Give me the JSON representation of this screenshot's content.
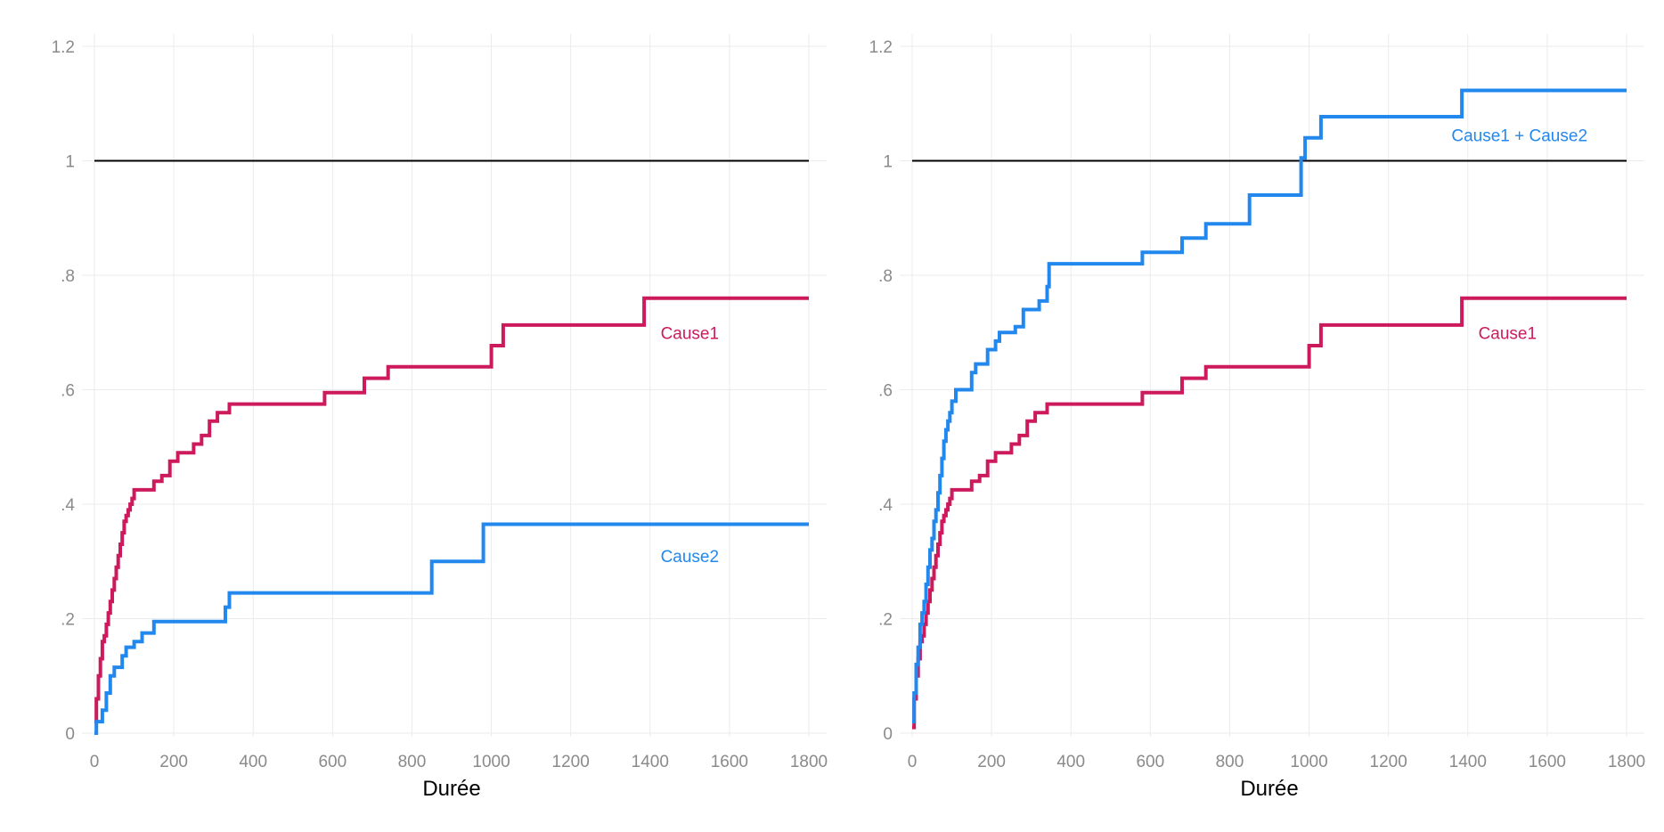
{
  "colors": {
    "cause1": "#cc1a5c",
    "cause2": "#2288ee",
    "ref": "#000000"
  },
  "chart_data": [
    {
      "type": "line",
      "step": true,
      "xlabel": "Durée",
      "ylabel": "",
      "xlim": [
        0,
        1800
      ],
      "ylim": [
        0,
        1.2
      ],
      "x_ticks": [
        0,
        200,
        400,
        600,
        800,
        1000,
        1200,
        1400,
        1600,
        1800
      ],
      "x_tick_labels": [
        "0",
        "200",
        "400",
        "600",
        "800",
        "1000",
        "1200",
        "1400",
        "1600",
        "1800"
      ],
      "y_ticks": [
        0,
        0.2,
        0.4,
        0.6,
        0.8,
        1,
        1.2
      ],
      "y_tick_labels": [
        "0",
        ".2",
        ".4",
        ".6",
        ".8",
        "1",
        "1.2"
      ],
      "reference_line": 1,
      "series": [
        {
          "key": "cause1",
          "label": "Cause1",
          "label_at": [
            1500,
            0.7
          ],
          "x": [
            0,
            5,
            10,
            15,
            20,
            25,
            30,
            35,
            40,
            45,
            50,
            55,
            60,
            65,
            70,
            75,
            80,
            85,
            90,
            95,
            100,
            110,
            150,
            170,
            190,
            210,
            250,
            270,
            290,
            310,
            340,
            400,
            580,
            680,
            740,
            800,
            1000,
            1030,
            1100,
            1385,
            1500,
            1800
          ],
          "y": [
            0.02,
            0.06,
            0.1,
            0.13,
            0.16,
            0.17,
            0.19,
            0.21,
            0.23,
            0.25,
            0.27,
            0.29,
            0.31,
            0.33,
            0.35,
            0.37,
            0.38,
            0.39,
            0.4,
            0.41,
            0.425,
            0.425,
            0.44,
            0.45,
            0.475,
            0.49,
            0.505,
            0.52,
            0.545,
            0.56,
            0.575,
            0.575,
            0.595,
            0.62,
            0.64,
            0.64,
            0.677,
            0.713,
            0.713,
            0.76,
            0.76,
            0.76
          ]
        },
        {
          "key": "cause2",
          "label": "Cause2",
          "label_at": [
            1500,
            0.31
          ],
          "x": [
            0,
            5,
            10,
            20,
            30,
            40,
            50,
            70,
            80,
            100,
            120,
            150,
            200,
            330,
            340,
            400,
            850,
            860,
            980,
            1000,
            1800
          ],
          "y": [
            0.0,
            0.02,
            0.02,
            0.04,
            0.07,
            0.1,
            0.115,
            0.135,
            0.15,
            0.16,
            0.175,
            0.195,
            0.195,
            0.22,
            0.245,
            0.245,
            0.3,
            0.3,
            0.365,
            0.365,
            0.365
          ]
        }
      ]
    },
    {
      "type": "line",
      "step": true,
      "xlabel": "Durée",
      "ylabel": "",
      "xlim": [
        0,
        1800
      ],
      "ylim": [
        0,
        1.2
      ],
      "x_ticks": [
        0,
        200,
        400,
        600,
        800,
        1000,
        1200,
        1400,
        1600,
        1800
      ],
      "x_tick_labels": [
        "0",
        "200",
        "400",
        "600",
        "800",
        "1000",
        "1200",
        "1400",
        "1600",
        "1800"
      ],
      "y_ticks": [
        0,
        0.2,
        0.4,
        0.6,
        0.8,
        1,
        1.2
      ],
      "y_tick_labels": [
        "0",
        ".2",
        ".4",
        ".6",
        ".8",
        "1",
        "1.2"
      ],
      "reference_line": 1,
      "series": [
        {
          "key": "cause1",
          "label": "Cause1",
          "label_at": [
            1500,
            0.7
          ],
          "x": [
            0,
            5,
            10,
            15,
            20,
            25,
            30,
            35,
            40,
            45,
            50,
            55,
            60,
            65,
            70,
            75,
            80,
            85,
            90,
            95,
            100,
            110,
            150,
            170,
            190,
            210,
            250,
            270,
            290,
            310,
            340,
            400,
            580,
            680,
            740,
            800,
            1000,
            1030,
            1100,
            1385,
            1500,
            1800
          ],
          "y": [
            0.01,
            0.06,
            0.1,
            0.13,
            0.16,
            0.17,
            0.19,
            0.21,
            0.23,
            0.25,
            0.27,
            0.29,
            0.31,
            0.33,
            0.35,
            0.37,
            0.38,
            0.39,
            0.4,
            0.41,
            0.425,
            0.425,
            0.44,
            0.45,
            0.475,
            0.49,
            0.505,
            0.52,
            0.545,
            0.56,
            0.575,
            0.575,
            0.595,
            0.62,
            0.64,
            0.64,
            0.677,
            0.713,
            0.713,
            0.76,
            0.76,
            0.76
          ]
        },
        {
          "key": "cause2",
          "label": "Cause1 + Cause2",
          "label_at": [
            1530,
            1.045
          ],
          "x": [
            0,
            5,
            10,
            15,
            20,
            25,
            30,
            35,
            40,
            45,
            50,
            55,
            60,
            65,
            70,
            75,
            80,
            85,
            90,
            95,
            100,
            110,
            140,
            150,
            160,
            190,
            210,
            220,
            260,
            280,
            300,
            320,
            340,
            345,
            580,
            650,
            680,
            740,
            850,
            980,
            990,
            1000,
            1030,
            1385,
            1800
          ],
          "y": [
            0.02,
            0.07,
            0.12,
            0.15,
            0.19,
            0.21,
            0.23,
            0.26,
            0.29,
            0.32,
            0.34,
            0.37,
            0.39,
            0.42,
            0.45,
            0.48,
            0.51,
            0.53,
            0.545,
            0.56,
            0.58,
            0.6,
            0.6,
            0.63,
            0.645,
            0.67,
            0.685,
            0.7,
            0.71,
            0.74,
            0.74,
            0.755,
            0.78,
            0.82,
            0.84,
            0.84,
            0.865,
            0.89,
            0.94,
            1.005,
            1.04,
            1.04,
            1.077,
            1.123,
            1.123
          ]
        }
      ]
    }
  ]
}
